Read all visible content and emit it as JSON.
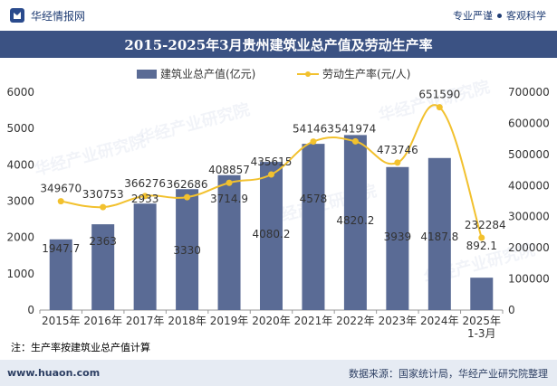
{
  "header": {
    "brand_name": "华经情报网",
    "tag1": "专业严谨",
    "tag2": "客观科学"
  },
  "title": "2015-2025年3月贵州建筑业总产值及劳动生产率",
  "note": "注：生产率按建筑业总产值计算",
  "footer": {
    "url": "www.huaon.com",
    "source": "数据来源：国家统计局，华经产业研究院整理"
  },
  "watermark": "华经产业研究院",
  "colors": {
    "bar": "#5a6b95",
    "line": "#f2c12e",
    "title_bg": "#3b5283",
    "footer_bg": "#e6ebf3"
  },
  "chart_data": {
    "type": "bar+line",
    "categories": [
      "2015年",
      "2016年",
      "2017年",
      "2018年",
      "2019年",
      "2020年",
      "2021年",
      "2022年",
      "2023年",
      "2024年",
      "2025年1-3月"
    ],
    "category_lines": [
      [
        "2015年"
      ],
      [
        "2016年"
      ],
      [
        "2017年"
      ],
      [
        "2018年"
      ],
      [
        "2019年"
      ],
      [
        "2020年"
      ],
      [
        "2021年"
      ],
      [
        "2022年"
      ],
      [
        "2023年"
      ],
      [
        "2024年"
      ],
      [
        "2025年",
        "1-3月"
      ]
    ],
    "series": [
      {
        "name": "建筑业总产值(亿元)",
        "axis": "left",
        "type": "bar",
        "values": [
          1947.7,
          2363,
          2933,
          3330,
          3714.9,
          4080.2,
          4578,
          4820.2,
          3939,
          4187.8,
          892.1
        ],
        "labels": [
          "1947.7",
          "2363",
          "2933",
          "3330",
          "3714.9",
          "4080.2",
          "4578",
          "4820.2",
          "3939",
          "4187.8",
          "892.1"
        ]
      },
      {
        "name": "劳动生产率(元/人)",
        "axis": "right",
        "type": "line",
        "values": [
          349670,
          330753,
          366276,
          362686,
          408857,
          435615,
          541463,
          541974,
          473746,
          651590,
          232284
        ],
        "labels": [
          "349670",
          "330753",
          "366276",
          "362686",
          "408857",
          "435615",
          "541463",
          "541974",
          "473746",
          "651590",
          "232284"
        ]
      }
    ],
    "y_left": {
      "min": 0,
      "max": 6000,
      "ticks": [
        0,
        1000,
        2000,
        3000,
        4000,
        5000,
        6000
      ]
    },
    "y_right": {
      "min": 0,
      "max": 700000,
      "ticks": [
        0,
        100000,
        200000,
        300000,
        400000,
        500000,
        600000,
        700000
      ]
    },
    "legend_position": "top-center"
  }
}
